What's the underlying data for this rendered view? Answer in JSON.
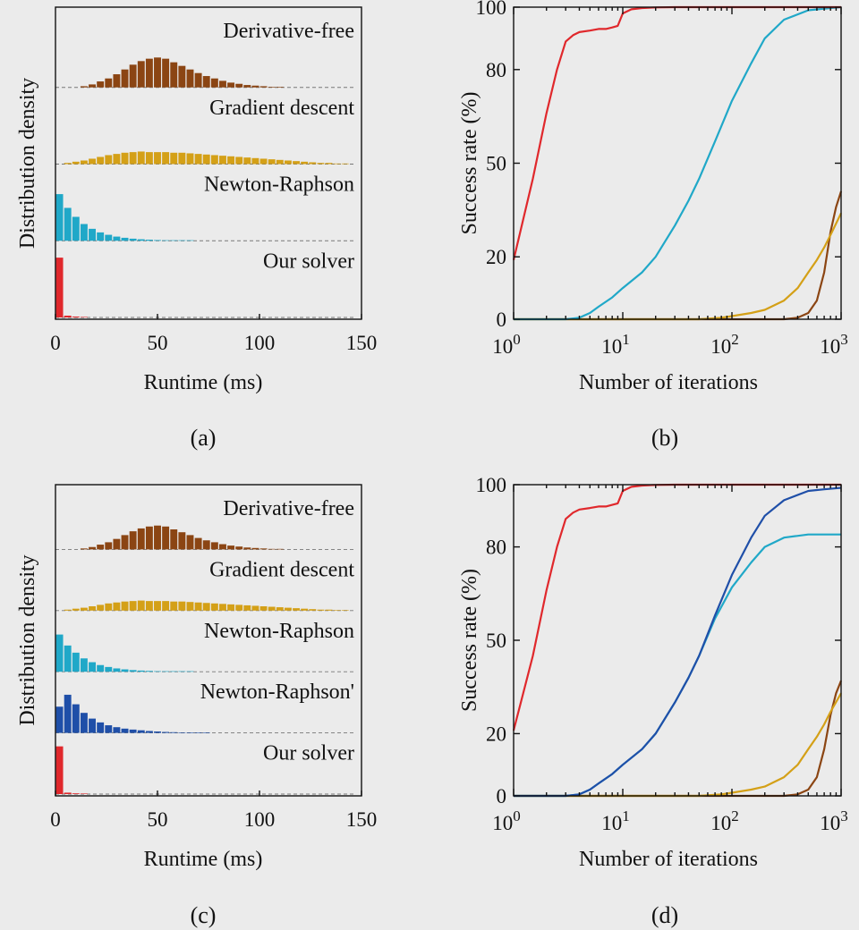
{
  "colors": {
    "derivative_free": "#8B4513",
    "gradient_descent": "#D4A017",
    "newton_raphson": "#20A8C8",
    "newton_raphson_prime": "#1F4FA8",
    "our_solver": "#E0282C"
  },
  "chart_data": [
    {
      "id": "a",
      "type": "bar",
      "caption": "(a)",
      "xlabel": "Runtime (ms)",
      "ylabel": "Distribution density",
      "xlim": [
        0,
        150
      ],
      "xticks": [
        0,
        50,
        100,
        150
      ],
      "bin_width_ms": 4,
      "series": [
        {
          "name": "Derivative-free",
          "color_key": "derivative_free",
          "bins_start": 12,
          "values": [
            0.02,
            0.05,
            0.1,
            0.15,
            0.22,
            0.3,
            0.38,
            0.44,
            0.48,
            0.5,
            0.48,
            0.42,
            0.36,
            0.3,
            0.24,
            0.19,
            0.15,
            0.11,
            0.08,
            0.06,
            0.04,
            0.03,
            0.02,
            0.01,
            0.01
          ]
        },
        {
          "name": "Gradient descent",
          "color_key": "gradient_descent",
          "bins_start": 4,
          "values": [
            0.02,
            0.04,
            0.06,
            0.09,
            0.12,
            0.15,
            0.17,
            0.19,
            0.2,
            0.21,
            0.2,
            0.2,
            0.2,
            0.19,
            0.19,
            0.18,
            0.17,
            0.16,
            0.15,
            0.14,
            0.13,
            0.12,
            0.11,
            0.1,
            0.09,
            0.08,
            0.07,
            0.06,
            0.05,
            0.04,
            0.03,
            0.02,
            0.02,
            0.01,
            0.01
          ]
        },
        {
          "name": "Newton-Raphson",
          "color_key": "newton_raphson",
          "bins_start": 0,
          "values": [
            0.78,
            0.55,
            0.4,
            0.28,
            0.2,
            0.14,
            0.1,
            0.07,
            0.05,
            0.035,
            0.025,
            0.018,
            0.012,
            0.008,
            0.005,
            0.003,
            0.002
          ]
        },
        {
          "name": "Our solver",
          "color_key": "our_solver",
          "bins_start": 0,
          "values": [
            1.0,
            0.03,
            0.015,
            0.008
          ]
        }
      ]
    },
    {
      "id": "b",
      "type": "line",
      "caption": "(b)",
      "xlabel": "Number of iterations",
      "ylabel": "Success rate (%)",
      "xscale": "log",
      "xlim": [
        1,
        1000
      ],
      "ylim": [
        0,
        100
      ],
      "xtick_base": "10",
      "xtick_exps": [
        "0",
        "1",
        "2",
        "3"
      ],
      "yticks": [
        0,
        20,
        50,
        80,
        100
      ],
      "series": [
        {
          "name": "Derivative-free",
          "color_key": "derivative_free",
          "x": [
            1,
            300,
            400,
            500,
            600,
            700,
            800,
            900,
            1000
          ],
          "y": [
            0,
            0,
            0.5,
            2,
            6,
            15,
            28,
            36,
            41
          ]
        },
        {
          "name": "Gradient descent",
          "color_key": "gradient_descent",
          "x": [
            1,
            50,
            80,
            100,
            150,
            200,
            300,
            400,
            500,
            600,
            700,
            800,
            1000
          ],
          "y": [
            0,
            0,
            0.5,
            1,
            2,
            3,
            6,
            10,
            15,
            19,
            23,
            27,
            34
          ]
        },
        {
          "name": "Newton-Raphson",
          "color_key": "newton_raphson",
          "x": [
            1,
            3,
            4,
            5,
            6,
            8,
            10,
            15,
            20,
            30,
            40,
            50,
            70,
            100,
            150,
            200,
            300,
            500,
            700,
            1000
          ],
          "y": [
            0,
            0,
            0.5,
            2,
            4,
            7,
            10,
            15,
            20,
            30,
            38,
            45,
            57,
            70,
            82,
            90,
            96,
            99,
            99.5,
            100
          ]
        },
        {
          "name": "Our solver",
          "color_key": "our_solver",
          "x": [
            1,
            1.5,
            2,
            2.5,
            3,
            3.5,
            4,
            5,
            6,
            7,
            8,
            9,
            10,
            12,
            15,
            20,
            30,
            50,
            100,
            1000
          ],
          "y": [
            19,
            45,
            66,
            80,
            89,
            91,
            92,
            92.5,
            93,
            93,
            93.5,
            94,
            98,
            99.3,
            99.7,
            99.9,
            100,
            100,
            100,
            100
          ]
        }
      ]
    },
    {
      "id": "c",
      "type": "bar",
      "caption": "(c)",
      "xlabel": "Runtime (ms)",
      "ylabel": "Distribution density",
      "xlim": [
        0,
        150
      ],
      "xticks": [
        0,
        50,
        100,
        150
      ],
      "bin_width_ms": 4,
      "series": [
        {
          "name": "Derivative-free",
          "color_key": "derivative_free",
          "bins_start": 12,
          "values": [
            0.02,
            0.05,
            0.1,
            0.15,
            0.22,
            0.3,
            0.38,
            0.44,
            0.48,
            0.5,
            0.48,
            0.42,
            0.36,
            0.3,
            0.24,
            0.19,
            0.15,
            0.11,
            0.08,
            0.06,
            0.04,
            0.03,
            0.02,
            0.01,
            0.01
          ]
        },
        {
          "name": "Gradient descent",
          "color_key": "gradient_descent",
          "bins_start": 4,
          "values": [
            0.02,
            0.04,
            0.06,
            0.09,
            0.12,
            0.15,
            0.17,
            0.19,
            0.2,
            0.21,
            0.2,
            0.2,
            0.2,
            0.19,
            0.19,
            0.18,
            0.17,
            0.16,
            0.15,
            0.14,
            0.13,
            0.12,
            0.11,
            0.1,
            0.09,
            0.08,
            0.07,
            0.06,
            0.05,
            0.04,
            0.03,
            0.02,
            0.02,
            0.01,
            0.01
          ]
        },
        {
          "name": "Newton-Raphson",
          "color_key": "newton_raphson",
          "bins_start": 0,
          "values": [
            0.78,
            0.55,
            0.4,
            0.28,
            0.2,
            0.14,
            0.1,
            0.07,
            0.05,
            0.035,
            0.025,
            0.018,
            0.012,
            0.008,
            0.005,
            0.003,
            0.002
          ]
        },
        {
          "name": "Newton-Raphson'",
          "color_key": "newton_raphson_prime",
          "bins_start": 0,
          "values": [
            0.55,
            0.8,
            0.6,
            0.42,
            0.3,
            0.22,
            0.16,
            0.12,
            0.09,
            0.07,
            0.055,
            0.04,
            0.03,
            0.02,
            0.015,
            0.01,
            0.006,
            0.004,
            0.002
          ]
        },
        {
          "name": "Our solver",
          "color_key": "our_solver",
          "bins_start": 0,
          "values": [
            1.0,
            0.03,
            0.015,
            0.008
          ]
        }
      ]
    },
    {
      "id": "d",
      "type": "line",
      "caption": "(d)",
      "xlabel": "Number of iterations",
      "ylabel": "Success rate (%)",
      "xscale": "log",
      "xlim": [
        1,
        1000
      ],
      "ylim": [
        0,
        100
      ],
      "xtick_base": "10",
      "xtick_exps": [
        "0",
        "1",
        "2",
        "3"
      ],
      "yticks": [
        0,
        20,
        50,
        80,
        100
      ],
      "series": [
        {
          "name": "Derivative-free",
          "color_key": "derivative_free",
          "x": [
            1,
            300,
            400,
            500,
            600,
            700,
            800,
            900,
            1000
          ],
          "y": [
            0,
            0,
            0.5,
            2,
            6,
            15,
            26,
            33,
            37
          ]
        },
        {
          "name": "Gradient descent",
          "color_key": "gradient_descent",
          "x": [
            1,
            50,
            80,
            100,
            150,
            200,
            300,
            400,
            500,
            600,
            700,
            800,
            1000
          ],
          "y": [
            0,
            0,
            0.5,
            1,
            2,
            3,
            6,
            10,
            15,
            19,
            23,
            27,
            33
          ]
        },
        {
          "name": "Newton-Raphson",
          "color_key": "newton_raphson",
          "x": [
            1,
            3,
            4,
            5,
            6,
            8,
            10,
            15,
            20,
            30,
            40,
            50,
            70,
            100,
            150,
            200,
            300,
            500,
            700,
            1000
          ],
          "y": [
            0,
            0,
            0.5,
            2,
            4,
            7,
            10,
            15,
            20,
            30,
            38,
            45,
            57,
            67,
            75,
            80,
            83,
            84,
            84,
            84
          ]
        },
        {
          "name": "Newton-Raphson'",
          "color_key": "newton_raphson_prime",
          "x": [
            1,
            3,
            4,
            5,
            6,
            8,
            10,
            15,
            20,
            30,
            40,
            50,
            70,
            100,
            150,
            200,
            300,
            500,
            700,
            1000
          ],
          "y": [
            0,
            0,
            0.5,
            2,
            4,
            7,
            10,
            15,
            20,
            30,
            38,
            45,
            58,
            71,
            83,
            90,
            95,
            98,
            98.5,
            99
          ]
        },
        {
          "name": "Our solver",
          "color_key": "our_solver",
          "x": [
            1,
            1.5,
            2,
            2.5,
            3,
            3.5,
            4,
            5,
            6,
            7,
            8,
            9,
            10,
            12,
            15,
            20,
            30,
            50,
            100,
            1000
          ],
          "y": [
            21,
            45,
            66,
            80,
            89,
            91,
            92,
            92.5,
            93,
            93,
            93.5,
            94,
            98,
            99.3,
            99.7,
            99.9,
            100,
            100,
            100,
            100
          ]
        }
      ]
    }
  ]
}
